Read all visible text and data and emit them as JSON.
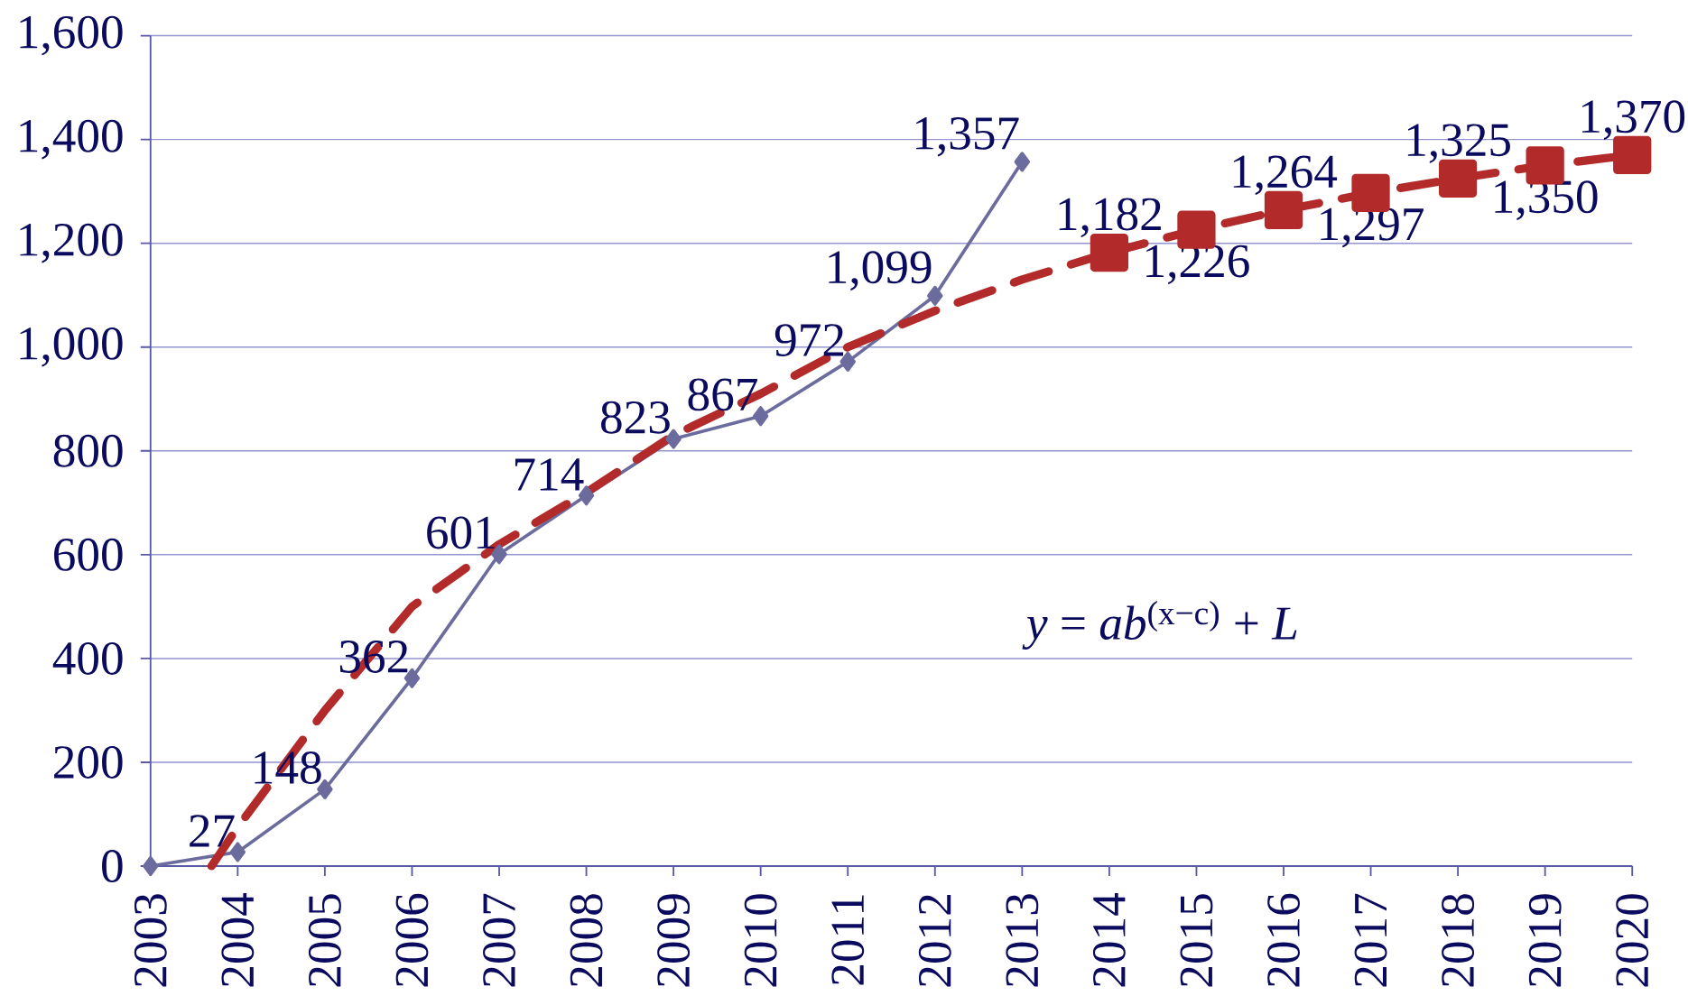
{
  "chart_data": {
    "type": "line",
    "xlim": [
      2003,
      2020
    ],
    "ylim": [
      0,
      1600
    ],
    "xticks": [
      2003,
      2004,
      2005,
      2006,
      2007,
      2008,
      2009,
      2010,
      2011,
      2012,
      2013,
      2014,
      2015,
      2016,
      2017,
      2018,
      2019,
      2020
    ],
    "yticks": [
      0,
      200,
      400,
      600,
      800,
      {
        "value": 1000,
        "label": "1,000"
      },
      {
        "value": 1200,
        "label": "1,200"
      },
      {
        "value": 1400,
        "label": "1,400"
      },
      {
        "value": 1600,
        "label": "1,600"
      }
    ],
    "grid": "y",
    "annotations": [
      {
        "text": "*y* = *ab*$^{(x−c)}$ + *L*"
      }
    ],
    "series": [
      {
        "color": "#6b6b9e",
        "marker": "diamond",
        "line_style": "solid",
        "x": [
          2003,
          2004,
          2005,
          2006,
          2007,
          2008,
          2009,
          2010,
          2011,
          2012,
          2013
        ],
        "values": [
          0,
          27,
          148,
          362,
          601,
          714,
          823,
          867,
          972,
          1099,
          1357
        ],
        "value_labels": [
          null,
          "27",
          "148",
          "362",
          "601",
          "714",
          "823",
          "867",
          "972",
          "1,099",
          "1,357"
        ]
      },
      {
        "color": "#b22a2a",
        "marker": "none",
        "line_style": "dashed",
        "x": [
          2003.7,
          2004,
          2005,
          2006,
          2007,
          2008,
          2009,
          2010,
          2011,
          2012,
          2013,
          2014
        ],
        "values": [
          0,
          75,
          300,
          500,
          620,
          720,
          830,
          910,
          1000,
          1070,
          1130,
          1182
        ]
      },
      {
        "color": "#b22a2a",
        "marker": "square",
        "line_style": "dashed",
        "x": [
          2014,
          2015,
          2016,
          2017,
          2018,
          2019,
          2020
        ],
        "values": [
          1182,
          1226,
          1264,
          1297,
          1325,
          1350,
          1370
        ],
        "value_labels": [
          "1,182",
          "1,226",
          "1,264",
          "1,297",
          "1,325",
          "1,350",
          "1,370"
        ]
      }
    ]
  }
}
